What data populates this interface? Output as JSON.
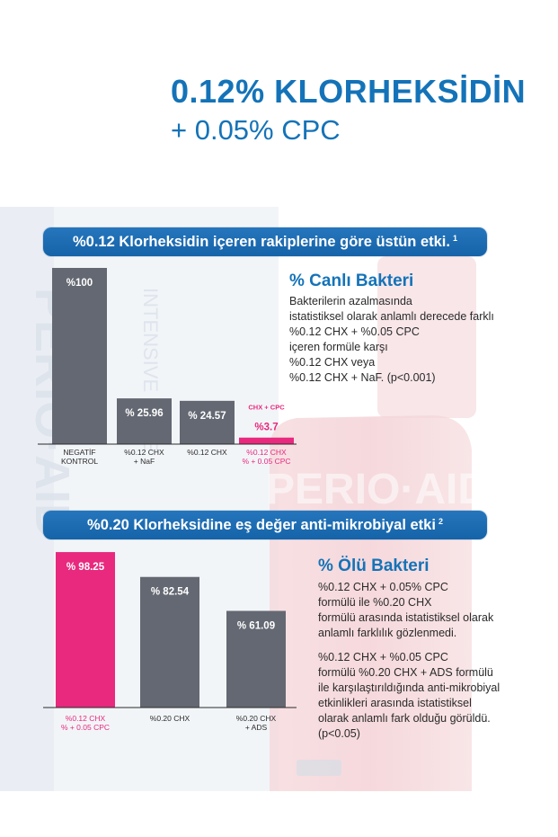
{
  "headline": {
    "line1": "0.12% KLORHEKSİDİN",
    "line2": "+ 0.05% CPC"
  },
  "section1": {
    "banner": "%0.12 Klorheksidin içeren rakiplerine göre üstün etki.",
    "banner_ref": "1",
    "side_title": "% Canlı Bakteri",
    "side_lines": [
      "Bakterilerin azalmasında",
      "istatistiksel olarak anlamlı derecede farklı",
      "%0.12 CHX + %0.05 CPC",
      "içeren formüle karşı",
      "%0.12 CHX  veya",
      "%0.12 CHX + NaF. (p<0.001)"
    ]
  },
  "section2": {
    "banner": "%0.20 Klorheksidine eş değer anti-mikrobiyal etki",
    "banner_ref": "2",
    "side_title": "% Ölü Bakteri",
    "para1_lines": [
      "%0.12 CHX + 0.05% CPC",
      "formülü ile %0.20 CHX",
      "formülü arasında istatistiksel olarak",
      "anlamlı farklılık gözlenmedi."
    ],
    "para2_lines": [
      "%0.12 CHX + %0.05 CPC",
      "formülü %0.20 CHX + ADS formülü",
      "ile karşılaştırıldığında anti-mikrobiyal",
      "etkinlikleri arasında istatistiksel",
      "olarak anlamlı fark olduğu görüldü.",
      "(p<0.05)"
    ]
  },
  "colors": {
    "brand_blue": "#1473b8",
    "bar_gray": "#646872",
    "bar_magenta": "#e8297e"
  },
  "chart_data": [
    {
      "type": "bar",
      "title": "% Canlı Bakteri",
      "categories": [
        [
          "NEGATİF",
          "KONTROL"
        ],
        [
          "%0.12 CHX",
          "+ NaF"
        ],
        [
          "%0.12 CHX"
        ],
        [
          "%0.12  CHX",
          "% + 0.05 CPC"
        ]
      ],
      "values": [
        100,
        25.96,
        24.57,
        3.7
      ],
      "value_labels": [
        "%100",
        "% 25.96",
        "% 24.57",
        "%3.7"
      ],
      "highlight": [
        false,
        false,
        false,
        true
      ],
      "annotation": "CHX + CPC",
      "ylim": [
        0,
        100
      ]
    },
    {
      "type": "bar",
      "title": "% Ölü Bakteri",
      "categories": [
        [
          "%0.12 CHX",
          "% + 0.05 CPC"
        ],
        [
          "%0.20 CHX"
        ],
        [
          "%0.20 CHX",
          "+ ADS"
        ]
      ],
      "values": [
        98.25,
        82.54,
        61.09
      ],
      "value_labels": [
        "% 98.25",
        "% 82.54",
        "% 61.09"
      ],
      "highlight": [
        true,
        false,
        false
      ],
      "ylim": [
        0,
        100
      ]
    }
  ]
}
